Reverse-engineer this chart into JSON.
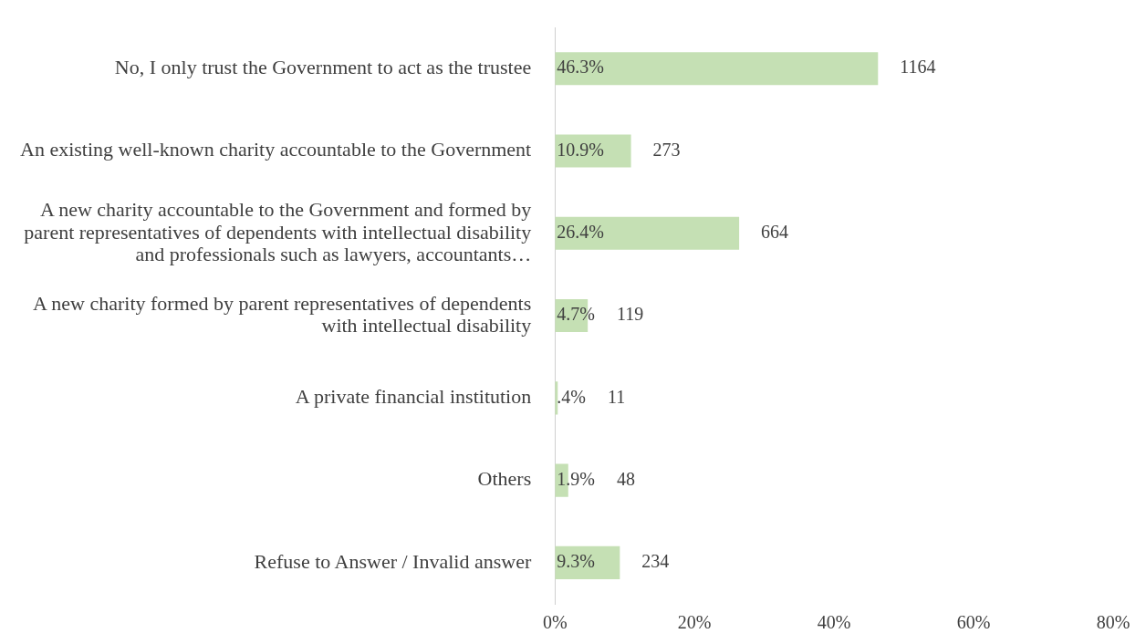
{
  "chart_data": {
    "type": "bar",
    "orientation": "horizontal",
    "categories": [
      "No, I only trust the Government to act as the trustee",
      "An existing well-known charity accountable to the Government",
      "A new charity accountable to the Government and formed by parent representatives of dependents with intellectual disability and professionals such as lawyers, accountants…",
      "A new charity formed by parent representatives of dependents with intellectual disability",
      "A private financial institution",
      "Others",
      "Refuse to Answer / Invalid answer"
    ],
    "values": [
      46.3,
      10.9,
      26.4,
      4.7,
      0.4,
      1.9,
      9.3
    ],
    "value_labels": [
      "46.3%",
      "10.9%",
      "26.4%",
      "4.7%",
      ".4%",
      "1.9%",
      "9.3%"
    ],
    "color": "#c5e0b4",
    "xlim": [
      0,
      80
    ],
    "xticks": [
      {
        "value": 0,
        "label": "0%"
      },
      {
        "value": 20,
        "label": "20%"
      },
      {
        "value": 40,
        "label": "40%"
      },
      {
        "value": 60,
        "label": "60%"
      },
      {
        "value": 80,
        "label": "80%"
      }
    ],
    "grid": false,
    "legend": false,
    "annotations": [
      "1164",
      "273",
      "664",
      "119",
      "11",
      "48",
      "234"
    ]
  }
}
